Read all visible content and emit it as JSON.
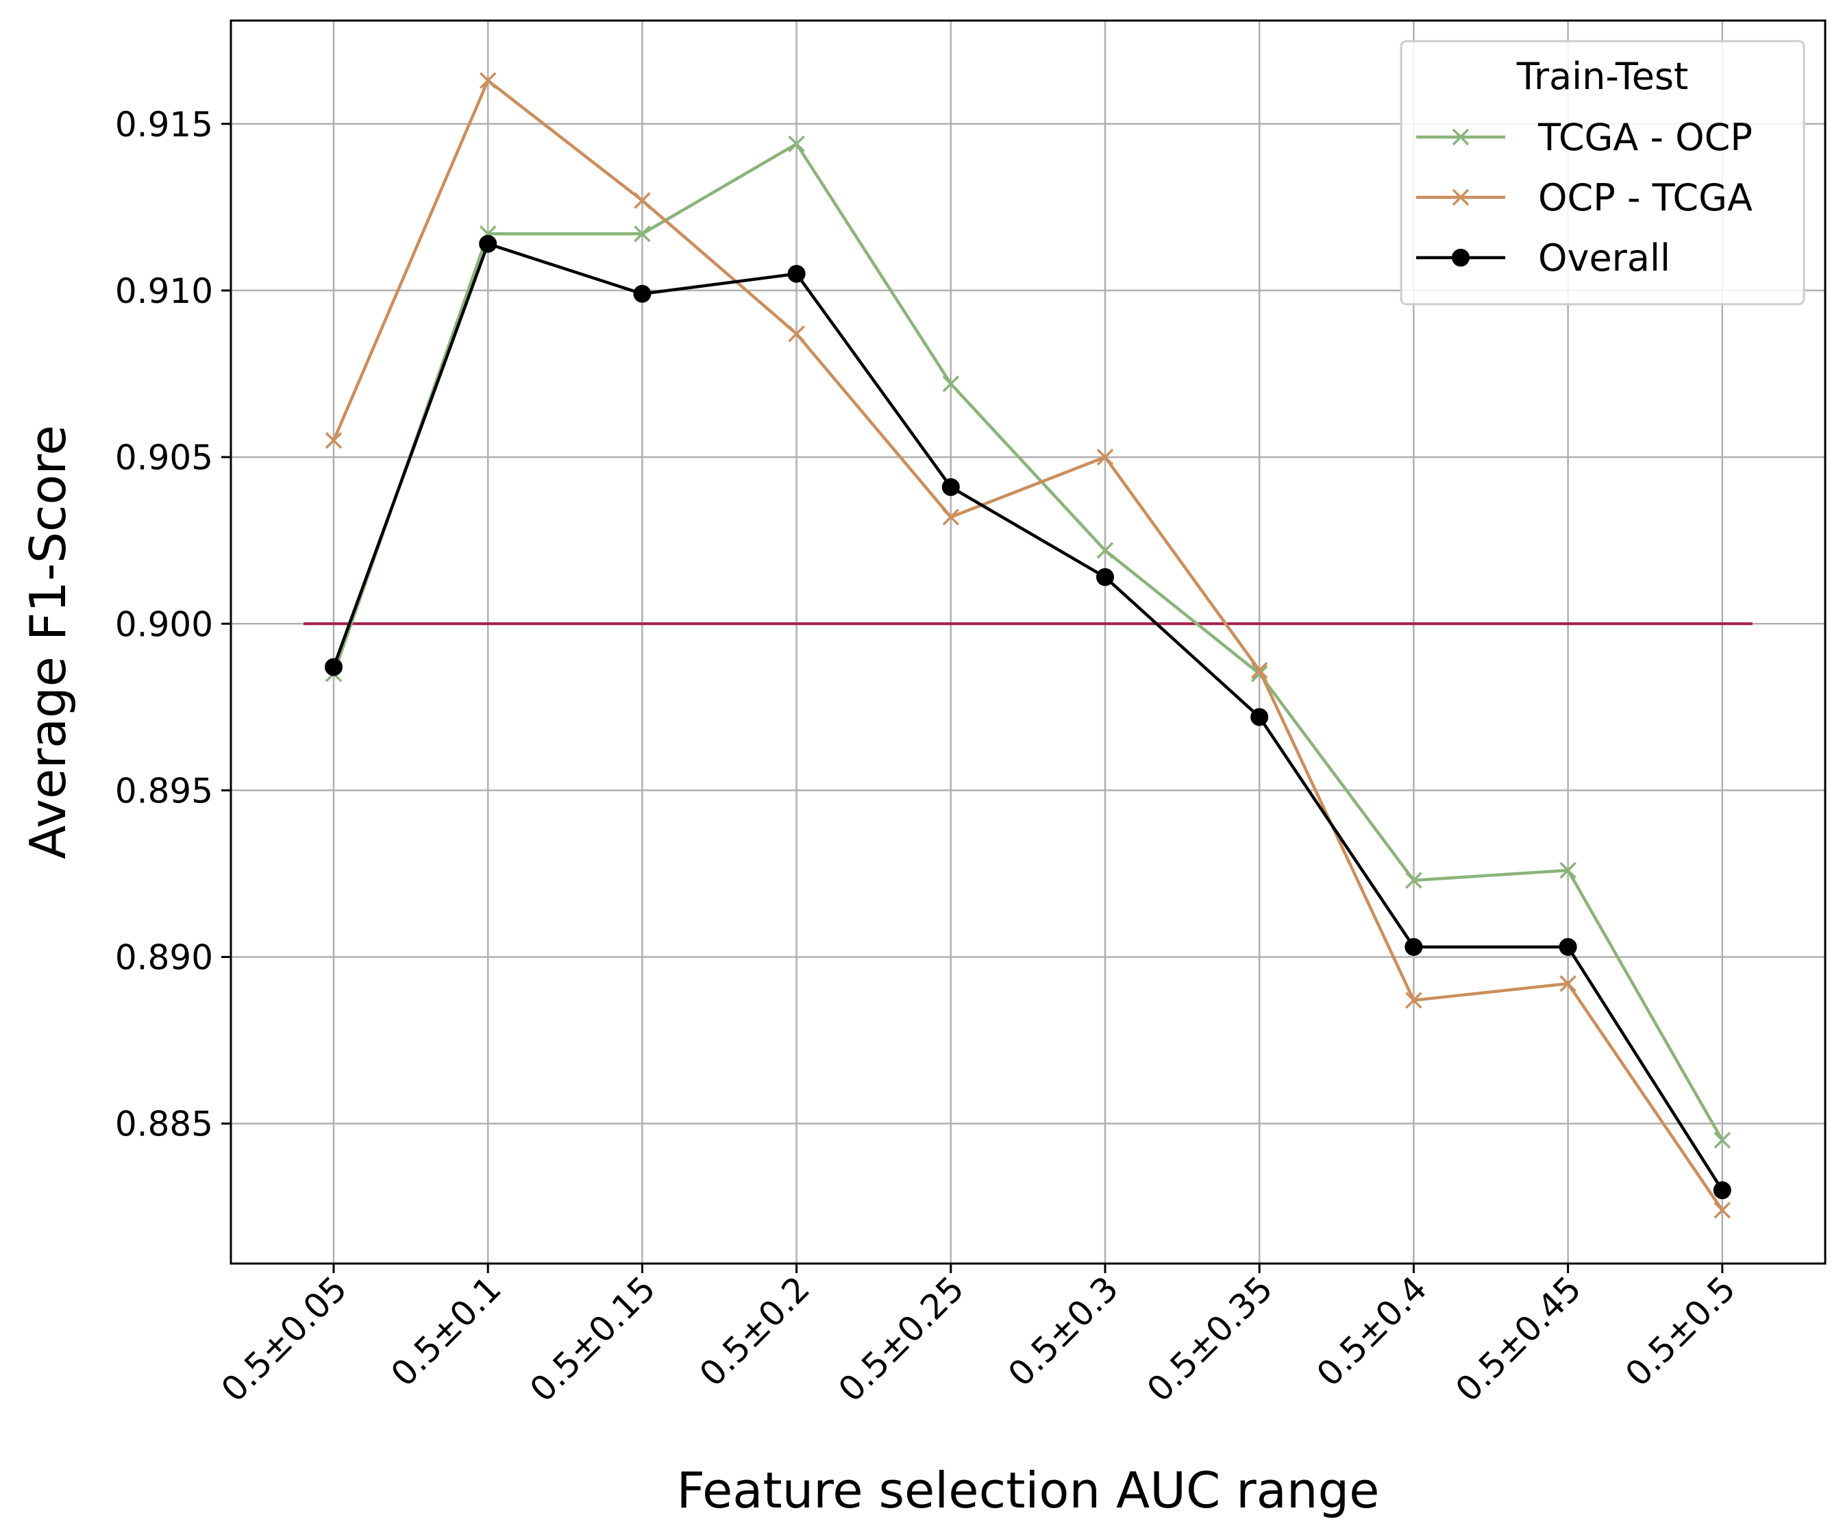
{
  "chart_data": {
    "type": "line",
    "title": "",
    "xlabel": "Feature selection AUC range",
    "ylabel": "Average F1-Score",
    "categories": [
      "0.5±0.05",
      "0.5±0.1",
      "0.5±0.15",
      "0.5±0.2",
      "0.5±0.25",
      "0.5±0.3",
      "0.5±0.35",
      "0.5±0.4",
      "0.5±0.45",
      "0.5±0.5"
    ],
    "ylim": [
      0.8808,
      0.9181
    ],
    "yticks": [
      0.885,
      0.89,
      0.895,
      0.9,
      0.905,
      0.91,
      0.915
    ],
    "ytick_labels": [
      "0.885",
      "0.890",
      "0.895",
      "0.900",
      "0.905",
      "0.910",
      "0.915"
    ],
    "grid": true,
    "legend": {
      "title": "Train-Test",
      "placement": "top-right"
    },
    "reference_line": {
      "y": 0.9,
      "color": "#a51c45"
    },
    "series": [
      {
        "name": "TCGA - OCP",
        "color": "#8ab47a",
        "marker": "x",
        "values": [
          0.8985,
          0.9117,
          0.9117,
          0.9144,
          0.9072,
          0.9022,
          0.8985,
          0.8923,
          0.8926,
          0.8845
        ]
      },
      {
        "name": "OCP - TCGA",
        "color": "#cc8e5b",
        "marker": "x",
        "values": [
          0.9055,
          0.9163,
          0.9127,
          0.9087,
          0.9032,
          0.905,
          0.8986,
          0.8887,
          0.8892,
          0.8824
        ]
      },
      {
        "name": "Overall",
        "color": "#000000",
        "marker": "o",
        "values": [
          0.8987,
          0.9114,
          0.9099,
          0.9105,
          0.9041,
          0.9014,
          0.8972,
          0.8903,
          0.8903,
          0.883
        ]
      }
    ]
  }
}
